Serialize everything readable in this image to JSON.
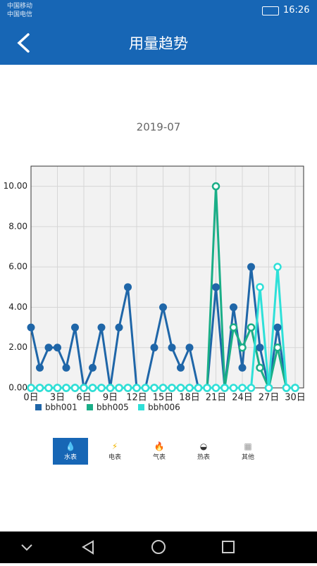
{
  "status_bar": {
    "carrier1": "中国移动",
    "carrier2": "中国电信",
    "time": "16:26"
  },
  "header": {
    "title": "用量趋势"
  },
  "chart_data": {
    "type": "line",
    "title": "2019-07",
    "x": [
      0,
      1,
      2,
      3,
      4,
      5,
      6,
      7,
      8,
      9,
      10,
      11,
      12,
      13,
      14,
      15,
      16,
      17,
      18,
      19,
      20,
      21,
      22,
      23,
      24,
      25,
      26,
      27,
      28,
      29,
      30
    ],
    "xlim": [
      0,
      30
    ],
    "xticks": [
      {
        "value": 0,
        "label": "0日"
      },
      {
        "value": 3,
        "label": "3日"
      },
      {
        "value": 6,
        "label": "6日"
      },
      {
        "value": 9,
        "label": "9日"
      },
      {
        "value": 12,
        "label": "12日"
      },
      {
        "value": 15,
        "label": "15日"
      },
      {
        "value": 18,
        "label": "18日"
      },
      {
        "value": 21,
        "label": "21日"
      },
      {
        "value": 24,
        "label": "24日"
      },
      {
        "value": 27,
        "label": "27日"
      },
      {
        "value": 30,
        "label": "30日"
      }
    ],
    "ylim": [
      0,
      11
    ],
    "yticks": [
      {
        "value": 0,
        "label": "0.00"
      },
      {
        "value": 2,
        "label": "2.00"
      },
      {
        "value": 4,
        "label": "4.00"
      },
      {
        "value": 6,
        "label": "6.00"
      },
      {
        "value": 8,
        "label": "8.00"
      },
      {
        "value": 10,
        "label": "10.00"
      }
    ],
    "grid": true,
    "series": [
      {
        "name": "bbh001",
        "color": "#1f66a8",
        "values": [
          3,
          1,
          2,
          2,
          1,
          3,
          0,
          1,
          3,
          0,
          3,
          5,
          0,
          0,
          2,
          4,
          2,
          1,
          2,
          0,
          0,
          5,
          0,
          4,
          1,
          6,
          2,
          0,
          3,
          0,
          0
        ]
      },
      {
        "name": "bbh005",
        "color": "#1aae87",
        "values": [
          0,
          0,
          0,
          0,
          0,
          0,
          0,
          0,
          0,
          0,
          0,
          0,
          0,
          0,
          0,
          0,
          0,
          0,
          0,
          0,
          0,
          10,
          0,
          3,
          2,
          3,
          1,
          0,
          2,
          0,
          0
        ]
      },
      {
        "name": "bbh006",
        "color": "#2ee0d8",
        "values": [
          0,
          0,
          0,
          0,
          0,
          0,
          0,
          0,
          0,
          0,
          0,
          0,
          0,
          0,
          0,
          0,
          0,
          0,
          0,
          0,
          0,
          0,
          0,
          0,
          0,
          0,
          5,
          0,
          6,
          0,
          0
        ]
      }
    ]
  },
  "tabs": [
    "水表",
    "电表",
    "气表",
    "热表",
    "其他"
  ]
}
